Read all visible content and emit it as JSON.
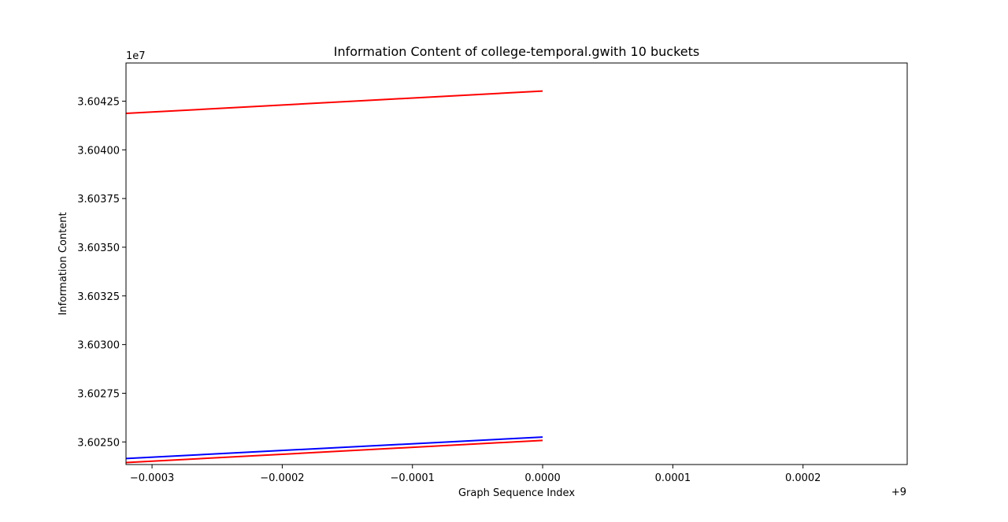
{
  "chart_data": {
    "type": "line",
    "title": "Information Content of college-temporal.gwith 10 buckets",
    "xlabel": "Graph Sequence Index",
    "ylabel": "Information Content",
    "x_offset_label": "+9",
    "y_scale_label": "1e7",
    "xlim": [
      -0.00032,
      0.00028
    ],
    "ylim": [
      3.602384,
      3.604446
    ],
    "x_ticks": [
      -0.0003,
      -0.0002,
      -0.0001,
      0.0,
      0.0001,
      0.0002
    ],
    "x_tick_labels": [
      "−0.0003",
      "−0.0002",
      "−0.0001",
      "0.0000",
      "0.0001",
      "0.0002"
    ],
    "y_ticks": [
      3.6025,
      3.60275,
      3.603,
      3.60325,
      3.6035,
      3.60375,
      3.604,
      3.60425
    ],
    "y_tick_labels": [
      "3.60250",
      "3.60275",
      "3.60300",
      "3.60325",
      "3.60350",
      "3.60375",
      "3.60400",
      "3.60425"
    ],
    "grid": false,
    "series": [
      {
        "color": "#ff0000",
        "x": [
          -0.00032,
          0.0
        ],
        "y": [
          3.604187,
          3.604302
        ]
      },
      {
        "color": "#0000ff",
        "x": [
          -0.00032,
          0.0
        ],
        "y": [
          3.602415,
          3.602525
        ]
      },
      {
        "color": "#ff0000",
        "x": [
          -0.00032,
          0.0
        ],
        "y": [
          3.602394,
          3.602508
        ]
      }
    ]
  }
}
